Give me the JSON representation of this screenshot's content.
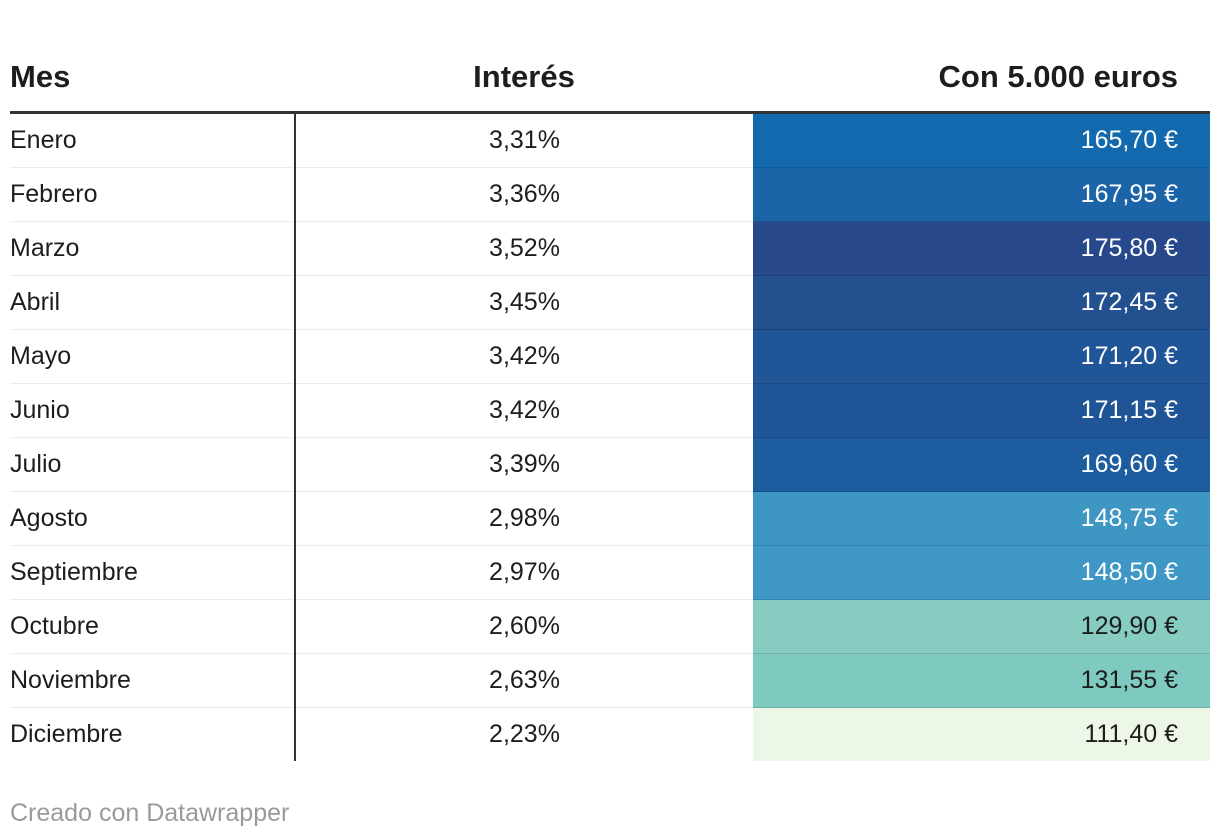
{
  "table": {
    "headers": [
      "Mes",
      "Interés",
      "Con 5.000 euros"
    ],
    "rows": [
      {
        "month": "Enero",
        "interest": "3,31%",
        "amount": "165,70 €",
        "bg": "#1269ae",
        "fg": "#ffffff"
      },
      {
        "month": "Febrero",
        "interest": "3,36%",
        "amount": "167,95 €",
        "bg": "#1c64a8",
        "fg": "#ffffff"
      },
      {
        "month": "Marzo",
        "interest": "3,52%",
        "amount": "175,80 €",
        "bg": "#27498c",
        "fg": "#ffffff"
      },
      {
        "month": "Abril",
        "interest": "3,45%",
        "amount": "172,45 €",
        "bg": "#23508f",
        "fg": "#ffffff"
      },
      {
        "month": "Mayo",
        "interest": "3,42%",
        "amount": "171,20 €",
        "bg": "#205597",
        "fg": "#ffffff"
      },
      {
        "month": "Junio",
        "interest": "3,42%",
        "amount": "171,15 €",
        "bg": "#1f5596",
        "fg": "#ffffff"
      },
      {
        "month": "Julio",
        "interest": "3,39%",
        "amount": "169,60 €",
        "bg": "#1c5c9f",
        "fg": "#ffffff"
      },
      {
        "month": "Agosto",
        "interest": "2,98%",
        "amount": "148,75 €",
        "bg": "#3e96c3",
        "fg": "#ffffff"
      },
      {
        "month": "Septiembre",
        "interest": "2,97%",
        "amount": "148,50 €",
        "bg": "#3e97c4",
        "fg": "#ffffff"
      },
      {
        "month": "Octubre",
        "interest": "2,60%",
        "amount": "129,90 €",
        "bg": "#86ccc0",
        "fg": "#1d1d1d"
      },
      {
        "month": "Noviembre",
        "interest": "2,63%",
        "amount": "131,55 €",
        "bg": "#7ec9c0",
        "fg": "#1d1d1d"
      },
      {
        "month": "Diciembre",
        "interest": "2,23%",
        "amount": "111,40 €",
        "bg": "#edf7e7",
        "fg": "#1d1d1d"
      }
    ]
  },
  "footer": {
    "attribution": "Creado con Datawrapper"
  },
  "colors": {
    "header_rule": "#333333",
    "column_divider": "#333333",
    "row_divider": "#ececec",
    "body_text": "#1d1d1d",
    "footer_text": "#9a9a9a",
    "heatmap_low": "#edf7e7",
    "heatmap_high": "#27498c"
  },
  "chart_data": {
    "type": "table",
    "columns": [
      "Mes",
      "Interés",
      "Con 5.000 euros"
    ],
    "months": [
      "Enero",
      "Febrero",
      "Marzo",
      "Abril",
      "Mayo",
      "Junio",
      "Julio",
      "Agosto",
      "Septiembre",
      "Octubre",
      "Noviembre",
      "Diciembre"
    ],
    "interest_pct": [
      3.31,
      3.36,
      3.52,
      3.45,
      3.42,
      3.42,
      3.39,
      2.98,
      2.97,
      2.6,
      2.63,
      2.23
    ],
    "amount_eur": [
      165.7,
      167.95,
      175.8,
      172.45,
      171.2,
      171.15,
      169.6,
      148.75,
      148.5,
      129.9,
      131.55,
      111.4
    ],
    "heatmap_column": "Con 5.000 euros",
    "heatmap_note": "amount cells shaded from pale green (lowest value) through teal and light blue to dark navy (highest value)",
    "attribution": "Creado con Datawrapper"
  }
}
